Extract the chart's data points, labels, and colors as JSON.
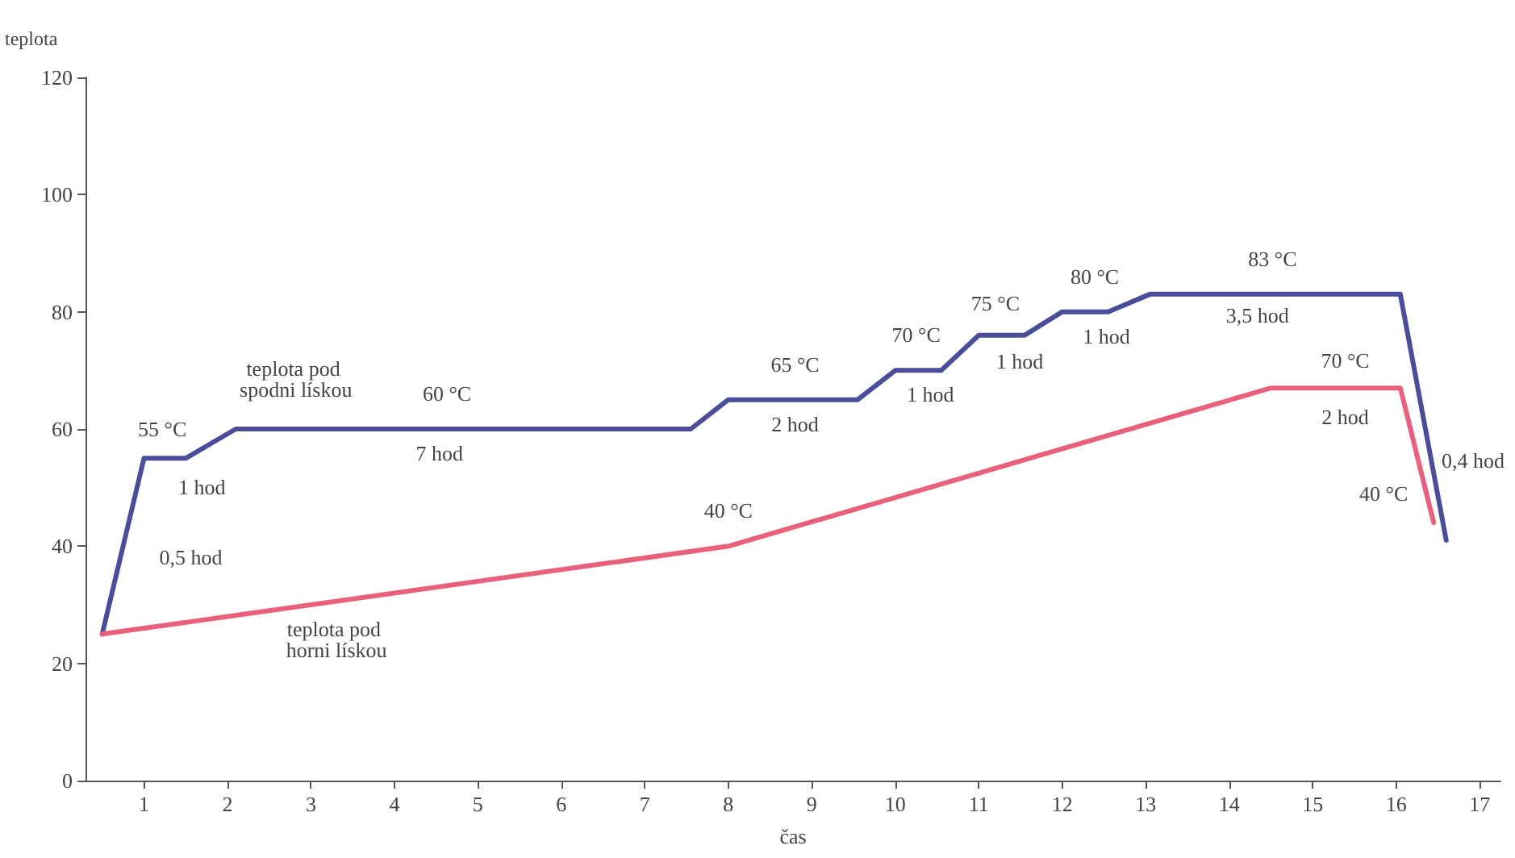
{
  "chart_data": {
    "type": "line",
    "xlabel": "čas",
    "ylabel": "teplota",
    "xlim": [
      0.3,
      17.25
    ],
    "xticks": [
      1,
      2,
      3,
      4,
      5,
      6,
      7,
      8,
      9,
      10,
      11,
      12,
      13,
      14,
      15,
      16,
      17
    ],
    "ylim": [
      0,
      120
    ],
    "yticks": [
      0,
      20,
      40,
      60,
      80,
      100,
      120
    ],
    "grid": false,
    "marker": "none",
    "line_style": "solid",
    "series": [
      {
        "color": "#4a4e9a",
        "x": [
          0.5,
          1.0,
          1.5,
          2.1,
          7.55,
          8.0,
          9.55,
          10.0,
          10.55,
          11.0,
          11.55,
          12.0,
          12.55,
          13.05,
          16.05,
          16.6
        ],
        "values": [
          25,
          55,
          55,
          60,
          60,
          65,
          65,
          70,
          70,
          76,
          76,
          80,
          80,
          83,
          83,
          41
        ]
      },
      {
        "color": "#e8607a",
        "x": [
          0.5,
          8.0,
          14.5,
          16.05,
          16.45
        ],
        "values": [
          25,
          40,
          67,
          67,
          44
        ]
      }
    ],
    "annotations": [
      {
        "text": "55 °C",
        "x": 1.22,
        "y": 55
      },
      {
        "text": "1 hod",
        "x": 1.25,
        "y": 55
      },
      {
        "text": "0,5 hod",
        "x": 0.75,
        "y": 40
      },
      {
        "text": "teplota pod spodni lískou",
        "x": 2.82,
        "y": 60
      },
      {
        "text": "60 °C",
        "x": 4.63,
        "y": 60
      },
      {
        "text": "7 hod",
        "x": 4.54,
        "y": 60
      },
      {
        "text": "teplota pod horni lískou",
        "x": 3.5,
        "y": 31
      },
      {
        "text": "40 °C",
        "x": 8.0,
        "y": 40
      },
      {
        "text": "65 °C",
        "x": 8.8,
        "y": 65
      },
      {
        "text": "2 hod",
        "x": 8.8,
        "y": 65
      },
      {
        "text": "70 °C",
        "x": 10.25,
        "y": 70
      },
      {
        "text": "1 hod",
        "x": 10.42,
        "y": 70
      },
      {
        "text": "75 °C",
        "x": 11.2,
        "y": 76
      },
      {
        "text": "1 hod",
        "x": 11.49,
        "y": 76
      },
      {
        "text": "80 °C",
        "x": 12.39,
        "y": 80
      },
      {
        "text": "1 hod",
        "x": 12.53,
        "y": 80
      },
      {
        "text": "83 °C",
        "x": 14.52,
        "y": 83
      },
      {
        "text": "3,5 hod",
        "x": 14.34,
        "y": 83
      },
      {
        "text": "70 °C",
        "x": 15.39,
        "y": 67
      },
      {
        "text": "2 hod",
        "x": 15.39,
        "y": 67
      },
      {
        "text": "40 °C",
        "x": 16.45,
        "y": 44
      },
      {
        "text": "0,4 hod",
        "x": 16.4,
        "y": 56.3
      }
    ]
  }
}
